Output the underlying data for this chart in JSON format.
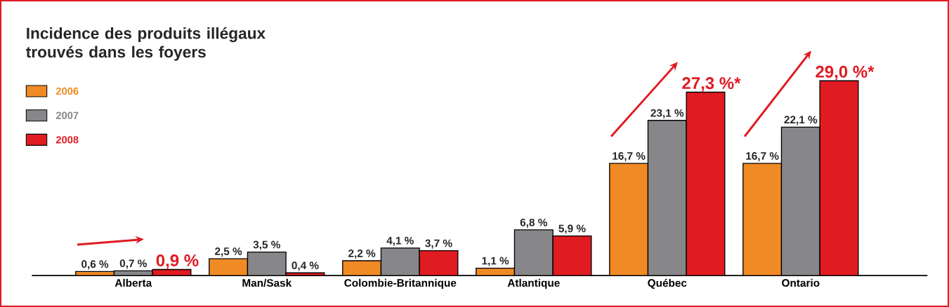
{
  "chart_data": {
    "type": "bar",
    "title": "Incidence des produits illégaux trouvés dans les foyers",
    "categories": [
      "Alberta",
      "Man/Sask",
      "Colombie-Britannique",
      "Atlantique",
      "Québec",
      "Ontario"
    ],
    "series": [
      {
        "name": "2006",
        "color": "#f08a24",
        "values": [
          0.6,
          2.5,
          2.2,
          1.1,
          16.7,
          16.7
        ],
        "value_labels": [
          "0,6 %",
          "2,5 %",
          "2,2 %",
          "1,1 %",
          "16,7 %",
          "16,7 %"
        ]
      },
      {
        "name": "2007",
        "color": "#87878a",
        "values": [
          0.7,
          3.5,
          4.1,
          6.8,
          23.1,
          22.1
        ],
        "value_labels": [
          "0,7 %",
          "3,5 %",
          "4,1 %",
          "6,8 %",
          "23,1 %",
          "22,1 %"
        ]
      },
      {
        "name": "2008",
        "color": "#e01b22",
        "values": [
          0.9,
          0.4,
          3.7,
          5.9,
          27.3,
          29.0
        ],
        "value_labels": [
          "0,9 %",
          "0,4 %",
          "3,7 %",
          "5,9 %",
          "27,3 %*",
          "29,0 %*"
        ]
      }
    ],
    "legend": "top left"
  }
}
